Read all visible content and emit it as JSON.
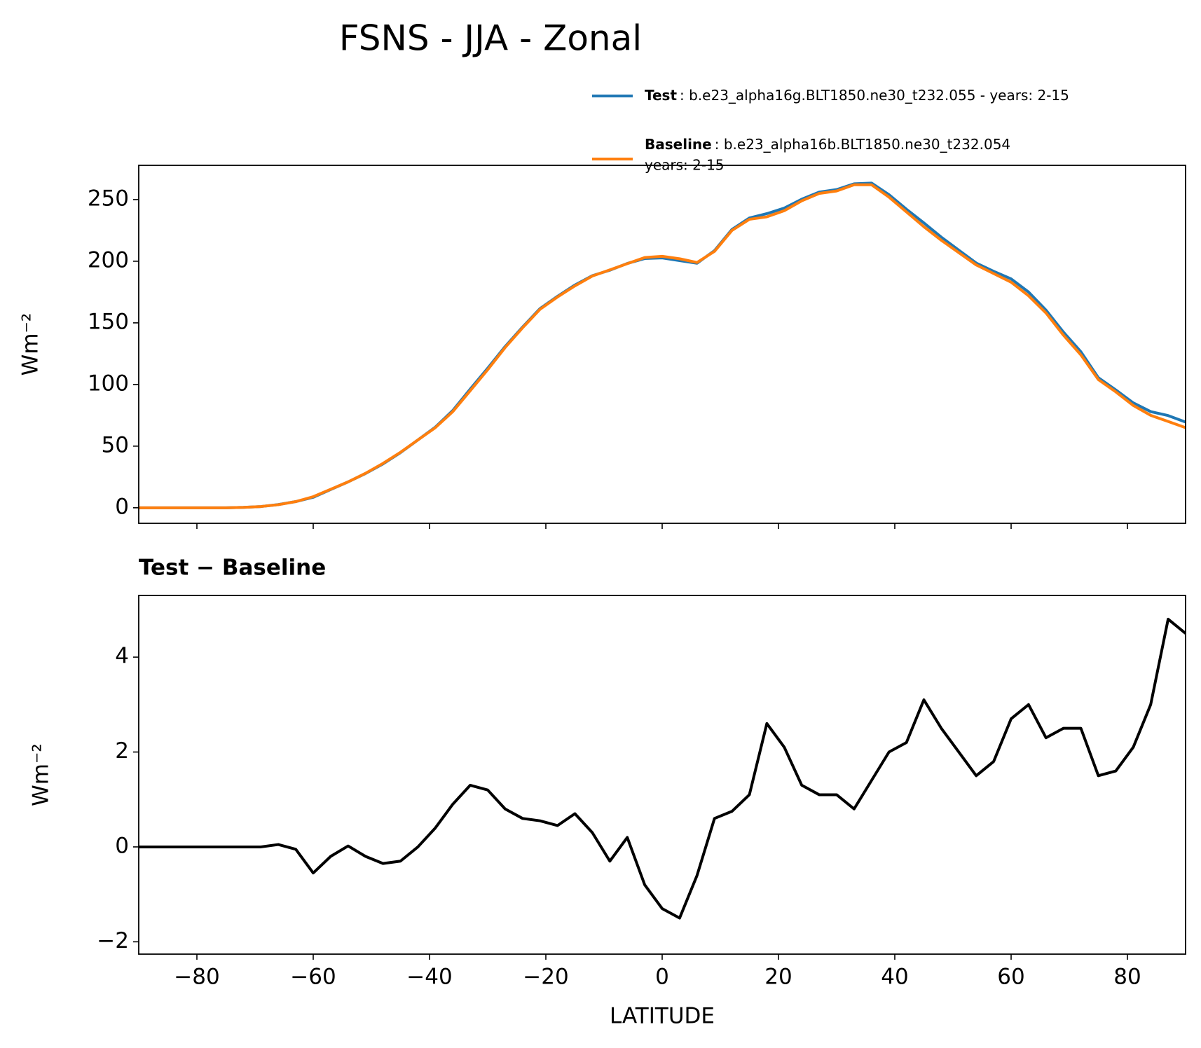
{
  "title": "FSNS - JJA - Zonal",
  "chart_data": [
    {
      "type": "line",
      "ylabel": "Wm⁻²",
      "x": [
        -90,
        -87,
        -84,
        -81,
        -78,
        -75,
        -72,
        -69,
        -66,
        -63,
        -60,
        -57,
        -54,
        -51,
        -48,
        -45,
        -42,
        -39,
        -36,
        -33,
        -30,
        -27,
        -24,
        -21,
        -18,
        -15,
        -12,
        -9,
        -6,
        -3,
        0,
        3,
        6,
        9,
        12,
        15,
        18,
        21,
        24,
        27,
        30,
        33,
        36,
        39,
        42,
        45,
        48,
        51,
        54,
        57,
        60,
        63,
        66,
        69,
        72,
        75,
        78,
        81,
        84,
        87,
        90
      ],
      "series": [
        {
          "name": "Test",
          "legend_lines": [
            ": b.e23_alpha16g.BLT1850.ne30_t232.055 - years: 2-15"
          ],
          "color": "#1f77b4",
          "values": [
            0,
            0,
            0,
            0,
            0,
            0,
            0.3,
            1,
            2.6,
            5,
            8.5,
            14.8,
            21,
            27.8,
            35.6,
            44.7,
            55,
            65.4,
            78.9,
            96.3,
            113.2,
            130.8,
            146.6,
            161.6,
            171.5,
            180.7,
            188.3,
            192.7,
            198.2,
            202.2,
            202.7,
            200.5,
            198.4,
            208.6,
            225.8,
            235.1,
            238.6,
            243.1,
            250.3,
            256.1,
            258.1,
            262.8,
            263.4,
            254,
            242.2,
            231.1,
            219.5,
            209,
            198.5,
            191.8,
            185.7,
            175,
            160.3,
            142.5,
            126.5,
            105.5,
            95.6,
            85.1,
            78,
            74.8,
            69.5
          ]
        },
        {
          "name": "Baseline",
          "legend_lines": [
            ": b.e23_alpha16b.BLT1850.ne30_t232.054",
            "years: 2-15"
          ],
          "color": "#ff7f0e",
          "values": [
            0,
            0,
            0,
            0,
            0,
            0,
            0.3,
            1,
            2.5,
            5,
            9,
            15,
            21,
            28,
            36,
            45,
            55,
            65,
            78,
            95,
            112,
            130,
            146,
            161,
            171,
            180,
            188,
            193,
            198,
            203,
            204,
            202,
            199,
            208,
            225,
            234,
            236,
            241,
            249,
            255,
            257,
            262,
            262,
            252,
            240,
            228,
            217,
            207,
            197,
            190,
            183,
            172,
            158,
            140,
            124,
            104,
            94,
            83,
            75,
            70,
            65
          ]
        }
      ],
      "xlim": [
        -90,
        90
      ],
      "ylim": [
        -12.6,
        277.8
      ],
      "yticks": [
        0,
        50,
        100,
        150,
        200,
        250
      ]
    },
    {
      "type": "line",
      "title": "Test − Baseline",
      "xlabel": "LATITUDE",
      "ylabel": "Wm⁻²",
      "x": [
        -90,
        -87,
        -84,
        -81,
        -78,
        -75,
        -72,
        -69,
        -66,
        -63,
        -60,
        -57,
        -54,
        -51,
        -48,
        -45,
        -42,
        -39,
        -36,
        -33,
        -30,
        -27,
        -24,
        -21,
        -18,
        -15,
        -12,
        -9,
        -6,
        -3,
        0,
        3,
        6,
        9,
        12,
        15,
        18,
        21,
        24,
        27,
        30,
        33,
        36,
        39,
        42,
        45,
        48,
        51,
        54,
        57,
        60,
        63,
        66,
        69,
        72,
        75,
        78,
        81,
        84,
        87,
        90
      ],
      "series": [
        {
          "color": "#000000",
          "values": [
            0,
            0,
            0,
            0,
            0,
            0,
            0,
            0,
            0.05,
            -0.05,
            -0.55,
            -0.2,
            0.02,
            -0.2,
            -0.35,
            -0.3,
            0,
            0.4,
            0.9,
            1.3,
            1.2,
            0.8,
            0.6,
            0.55,
            0.45,
            0.7,
            0.3,
            -0.3,
            0.2,
            -0.8,
            -1.3,
            -1.5,
            -0.6,
            0.6,
            0.75,
            1.1,
            2.6,
            2.1,
            1.3,
            1.1,
            1.1,
            0.8,
            1.4,
            2,
            2.2,
            3.1,
            2.5,
            2,
            1.5,
            1.8,
            2.7,
            3,
            2.3,
            2.5,
            2.5,
            1.5,
            1.6,
            2.1,
            3,
            4.8,
            4.5
          ]
        }
      ],
      "xlim": [
        -90,
        90
      ],
      "ylim": [
        -2.26,
        5.3
      ],
      "xticks": [
        {
          "value": -80,
          "label": "−80"
        },
        {
          "value": -60,
          "label": "−60"
        },
        {
          "value": -40,
          "label": "−40"
        },
        {
          "value": -20,
          "label": "−20"
        },
        0,
        20,
        40,
        60,
        80
      ],
      "yticks": [
        {
          "value": -2,
          "label": "−2"
        },
        0,
        2,
        4
      ]
    }
  ]
}
